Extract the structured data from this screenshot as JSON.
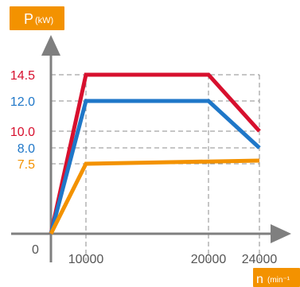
{
  "chart_data": {
    "type": "line",
    "title": "",
    "ylabel": {
      "main": "P",
      "unit": "(kW)"
    },
    "xlabel": {
      "main": "n",
      "unit": "(min⁻¹"
    },
    "origin_label": "0",
    "x_ticks": [
      "10000",
      "20000",
      "24000"
    ],
    "xlim": [
      0,
      24000
    ],
    "ylim": [
      0,
      14.5
    ],
    "grid": "dashed reference lines",
    "series": [
      {
        "color": "#d7102e",
        "x": [
          0,
          10000,
          20000,
          24000
        ],
        "y": [
          0,
          14.5,
          14.5,
          10.0
        ],
        "y_labels": [
          "14.5",
          "10.0"
        ]
      },
      {
        "color": "#1f77c8",
        "x": [
          0,
          10000,
          20000,
          24000
        ],
        "y": [
          0,
          12.0,
          12.0,
          8.0
        ],
        "y_labels": [
          "12.0",
          "8.0"
        ]
      },
      {
        "color": "#f39200",
        "x": [
          0,
          10000,
          24000
        ],
        "y": [
          0,
          7.5,
          7.6
        ],
        "y_labels": [
          "7.5"
        ]
      }
    ],
    "y_tick_order": [
      {
        "label": "14.5",
        "value": 14.5,
        "color": "#d7102e"
      },
      {
        "label": "12.0",
        "value": 12.0,
        "color": "#1f77c8"
      },
      {
        "label": "10.0",
        "value": 10.0,
        "color": "#d7102e"
      },
      {
        "label": "8.0",
        "value": 8.0,
        "color": "#1f77c8"
      },
      {
        "label": "7.5",
        "value": 7.5,
        "color": "#f39200"
      }
    ],
    "colors": {
      "axis": "#7f7f7f",
      "grid": "#8c8c8c",
      "badge": "#f39200",
      "tick_text": "#555555"
    }
  }
}
